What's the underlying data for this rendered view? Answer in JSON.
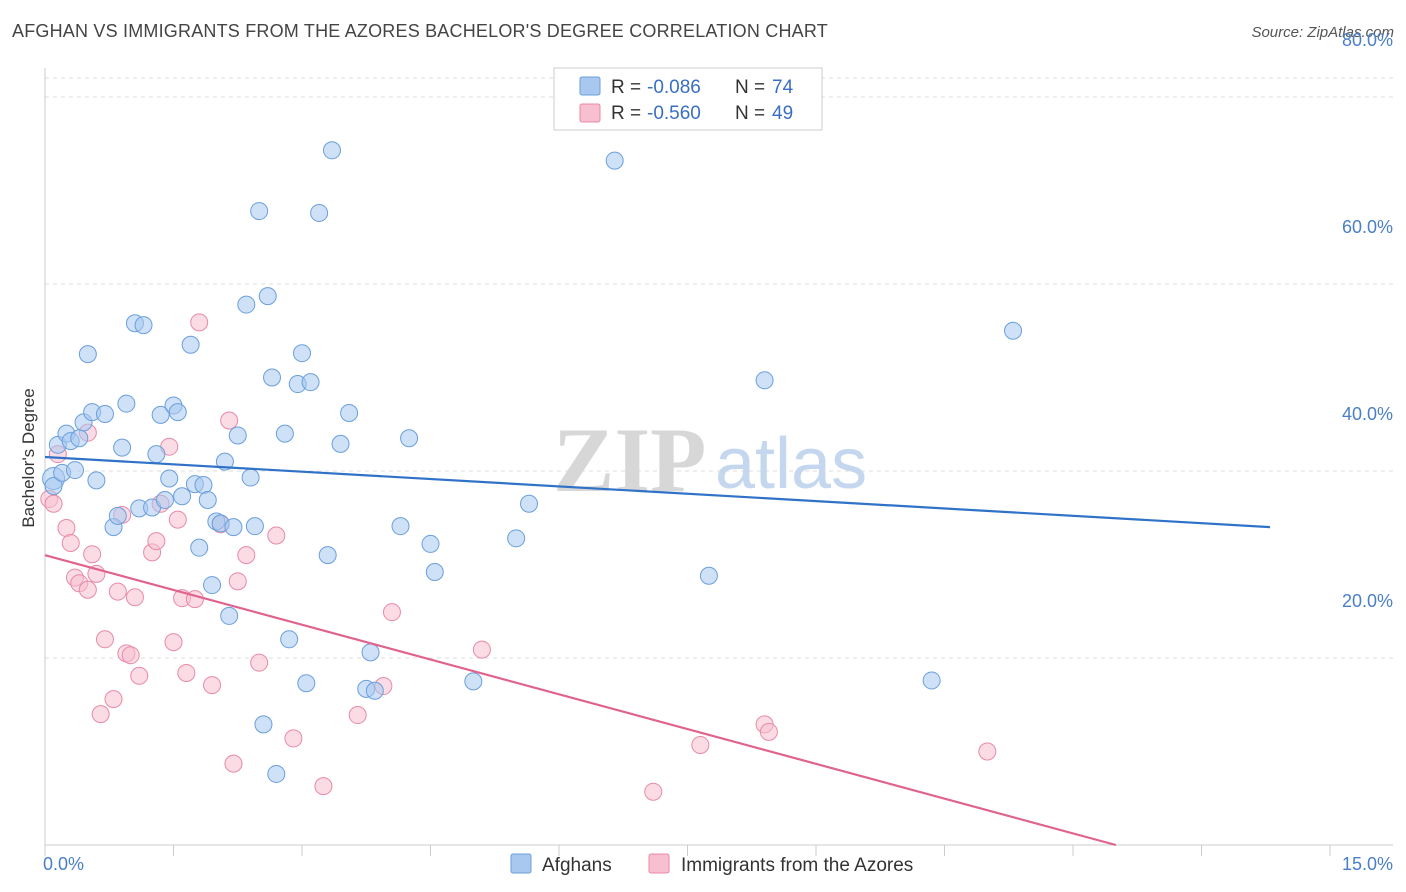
{
  "title": "AFGHAN VS IMMIGRANTS FROM THE AZORES BACHELOR'S DEGREE CORRELATION CHART",
  "source": "Source: ZipAtlas.com",
  "watermark": {
    "zip": "ZIP",
    "atlas": "atlas"
  },
  "colors": {
    "blue_fill": "#a8c8f0",
    "blue_stroke": "#6a9fdc",
    "blue_line": "#2f72c8",
    "pink_fill": "#f7bfd0",
    "pink_stroke": "#e88aa8",
    "pink_line": "#e0638f",
    "tick_label": "#4a7fc8",
    "grid": "#dddddd"
  },
  "legend": {
    "rows": [
      {
        "r_label": "R = ",
        "r_value": "-0.086",
        "n_label": "N = ",
        "n_value": "74"
      },
      {
        "r_label": "R = ",
        "r_value": "-0.560",
        "n_label": "N = ",
        "n_value": "49"
      }
    ]
  },
  "bottom_legend": [
    "Afghans",
    "Immigrants from the Azores"
  ],
  "chart_data": {
    "type": "scatter",
    "title": "AFGHAN VS IMMIGRANTS FROM THE AZORES BACHELOR'S DEGREE CORRELATION CHART",
    "xlabel": "",
    "ylabel": "Bachelor's Degree",
    "xlim": [
      0,
      15
    ],
    "ylim": [
      0,
      80
    ],
    "x_tick_labels": [
      "0.0%",
      "15.0%"
    ],
    "y_ticks": [
      20,
      40,
      60,
      80
    ],
    "y_tick_labels": [
      "20.0%",
      "40.0%",
      "60.0%",
      "80.0%"
    ],
    "grid": "horizontal dashed",
    "legend_position": "top-center",
    "series": [
      {
        "name": "Afghans",
        "color": "#a8c8f0",
        "r": -0.086,
        "n": 74,
        "trend": {
          "x": [
            0,
            14.3
          ],
          "y": [
            41.5,
            34.0
          ]
        },
        "points": [
          [
            0.1,
            39.2
          ],
          [
            0.1,
            38.4
          ],
          [
            0.15,
            42.8
          ],
          [
            0.2,
            39.8
          ],
          [
            0.25,
            44.0
          ],
          [
            0.3,
            43.2
          ],
          [
            0.35,
            40.1
          ],
          [
            0.4,
            43.5
          ],
          [
            0.45,
            45.2
          ],
          [
            0.5,
            52.5
          ],
          [
            0.55,
            46.3
          ],
          [
            0.6,
            39.0
          ],
          [
            0.7,
            46.1
          ],
          [
            0.8,
            34.0
          ],
          [
            0.85,
            35.2
          ],
          [
            0.9,
            42.5
          ],
          [
            0.95,
            47.2
          ],
          [
            1.05,
            55.8
          ],
          [
            1.15,
            55.6
          ],
          [
            1.1,
            36.0
          ],
          [
            1.25,
            36.1
          ],
          [
            1.3,
            41.8
          ],
          [
            1.35,
            46.0
          ],
          [
            1.4,
            36.9
          ],
          [
            1.45,
            39.2
          ],
          [
            1.5,
            47.0
          ],
          [
            1.55,
            46.3
          ],
          [
            1.6,
            37.3
          ],
          [
            1.7,
            53.5
          ],
          [
            1.75,
            38.6
          ],
          [
            1.8,
            31.8
          ],
          [
            1.85,
            38.5
          ],
          [
            1.9,
            36.9
          ],
          [
            1.95,
            27.8
          ],
          [
            2.0,
            34.6
          ],
          [
            2.05,
            34.4
          ],
          [
            2.1,
            41.0
          ],
          [
            2.15,
            24.5
          ],
          [
            2.2,
            34.0
          ],
          [
            2.25,
            43.8
          ],
          [
            2.35,
            57.8
          ],
          [
            2.4,
            39.3
          ],
          [
            2.45,
            34.1
          ],
          [
            2.5,
            67.8
          ],
          [
            2.55,
            12.9
          ],
          [
            2.6,
            58.7
          ],
          [
            2.65,
            50.0
          ],
          [
            2.7,
            7.6
          ],
          [
            2.8,
            44.0
          ],
          [
            2.85,
            22.0
          ],
          [
            2.95,
            49.3
          ],
          [
            3.0,
            52.6
          ],
          [
            3.05,
            17.3
          ],
          [
            3.1,
            49.5
          ],
          [
            3.2,
            67.6
          ],
          [
            3.3,
            31.0
          ],
          [
            3.35,
            74.3
          ],
          [
            3.45,
            42.9
          ],
          [
            3.55,
            46.2
          ],
          [
            3.75,
            16.7
          ],
          [
            3.8,
            20.6
          ],
          [
            3.85,
            16.5
          ],
          [
            4.15,
            34.1
          ],
          [
            4.25,
            43.5
          ],
          [
            4.5,
            32.2
          ],
          [
            4.55,
            29.2
          ],
          [
            5.0,
            17.5
          ],
          [
            5.5,
            32.8
          ],
          [
            5.65,
            36.5
          ],
          [
            6.65,
            73.2
          ],
          [
            7.75,
            28.8
          ],
          [
            8.4,
            49.7
          ],
          [
            10.35,
            17.6
          ],
          [
            11.3,
            55.0
          ]
        ]
      },
      {
        "name": "Immigrants from the Azores",
        "color": "#f7bfd0",
        "r": -0.56,
        "n": 49,
        "trend": {
          "x": [
            0,
            12.5
          ],
          "y": [
            31.0,
            0.0
          ]
        },
        "points": [
          [
            0.05,
            37.0
          ],
          [
            0.1,
            36.5
          ],
          [
            0.15,
            41.8
          ],
          [
            0.25,
            33.9
          ],
          [
            0.3,
            32.3
          ],
          [
            0.35,
            28.6
          ],
          [
            0.4,
            28.0
          ],
          [
            0.5,
            44.1
          ],
          [
            0.5,
            27.3
          ],
          [
            0.55,
            31.1
          ],
          [
            0.6,
            29.0
          ],
          [
            0.65,
            14.0
          ],
          [
            0.7,
            22.0
          ],
          [
            0.8,
            15.6
          ],
          [
            0.85,
            27.1
          ],
          [
            0.9,
            35.3
          ],
          [
            0.95,
            20.5
          ],
          [
            1.0,
            20.3
          ],
          [
            1.05,
            26.5
          ],
          [
            1.1,
            18.1
          ],
          [
            1.25,
            31.3
          ],
          [
            1.3,
            32.5
          ],
          [
            1.35,
            36.5
          ],
          [
            1.45,
            42.6
          ],
          [
            1.5,
            21.7
          ],
          [
            1.55,
            34.8
          ],
          [
            1.6,
            26.4
          ],
          [
            1.65,
            18.4
          ],
          [
            1.75,
            26.3
          ],
          [
            1.8,
            55.9
          ],
          [
            1.95,
            17.1
          ],
          [
            2.05,
            34.3
          ],
          [
            2.15,
            45.4
          ],
          [
            2.2,
            8.7
          ],
          [
            2.25,
            28.2
          ],
          [
            2.35,
            31.0
          ],
          [
            2.5,
            19.5
          ],
          [
            2.7,
            33.1
          ],
          [
            2.9,
            11.4
          ],
          [
            3.25,
            6.3
          ],
          [
            3.65,
            13.9
          ],
          [
            3.95,
            17.0
          ],
          [
            4.05,
            24.9
          ],
          [
            5.1,
            20.9
          ],
          [
            7.1,
            5.7
          ],
          [
            7.65,
            10.7
          ],
          [
            8.4,
            12.9
          ],
          [
            8.45,
            12.1
          ],
          [
            11.0,
            10.0
          ]
        ]
      }
    ]
  }
}
